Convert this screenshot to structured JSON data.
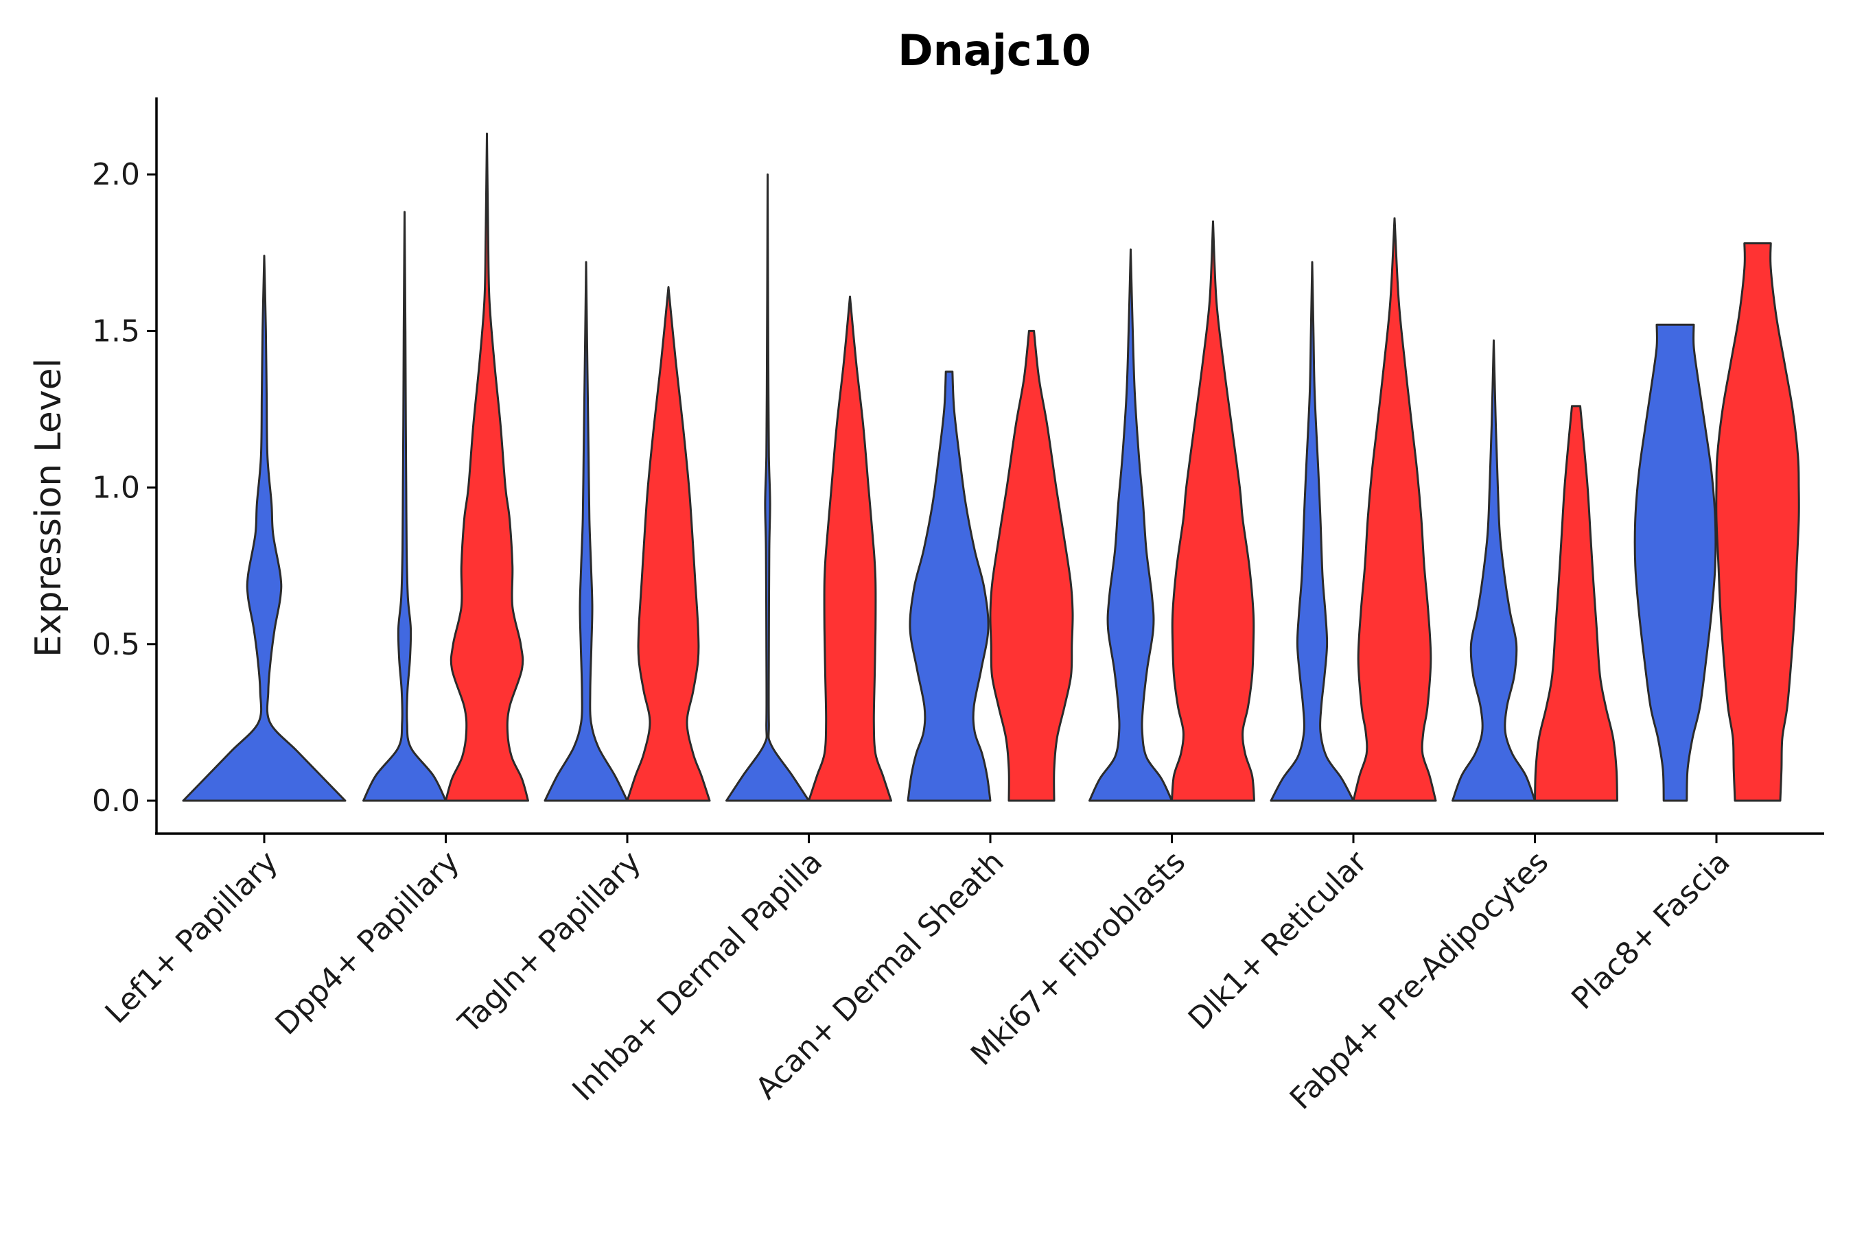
{
  "chart_data": {
    "type": "violin",
    "title": "Dnajc10",
    "xlabel": "",
    "ylabel": "Expression Level",
    "ylim": [
      -0.1,
      2.25
    ],
    "yticks": [
      "0.0",
      "0.5",
      "1.0",
      "1.5",
      "2.0"
    ],
    "grid": false,
    "legend": "none",
    "categories": [
      "Lef1+ Papillary",
      "Dpp4+ Papillary",
      "Tagln+ Papillary",
      "Inhba+ Dermal Papilla",
      "Acan+ Dermal Sheath",
      "Mki67+ Fibroblasts",
      "Dlk1+ Reticular",
      "Fabp4+ Pre-Adipocytes",
      "Plac8+ Fascia"
    ],
    "series": [
      {
        "name": "group 1",
        "color": "#4169E1",
        "violins": [
          {
            "max": 1.74,
            "profile": [
              [
                0,
                1
              ],
              [
                0.08,
                0.7
              ],
              [
                0.16,
                0.4
              ],
              [
                0.25,
                0.07
              ],
              [
                0.35,
                0.05
              ],
              [
                0.45,
                0.08
              ],
              [
                0.55,
                0.13
              ],
              [
                0.65,
                0.2
              ],
              [
                0.72,
                0.2
              ],
              [
                0.85,
                0.11
              ],
              [
                0.95,
                0.09
              ],
              [
                1.1,
                0.04
              ],
              [
                1.3,
                0.03
              ],
              [
                1.5,
                0.02
              ],
              [
                1.74,
                0
              ]
            ]
          },
          {
            "max": 1.88,
            "profile": [
              [
                0,
                1
              ],
              [
                0.08,
                0.7
              ],
              [
                0.17,
                0.15
              ],
              [
                0.25,
                0.06
              ],
              [
                0.35,
                0.07
              ],
              [
                0.45,
                0.13
              ],
              [
                0.55,
                0.15
              ],
              [
                0.65,
                0.08
              ],
              [
                0.8,
                0.05
              ],
              [
                1.0,
                0.04
              ],
              [
                1.2,
                0.03
              ],
              [
                1.5,
                0.02
              ],
              [
                1.88,
                0
              ]
            ]
          },
          {
            "max": 1.72,
            "profile": [
              [
                0,
                1
              ],
              [
                0.08,
                0.7
              ],
              [
                0.17,
                0.3
              ],
              [
                0.25,
                0.12
              ],
              [
                0.35,
                0.1
              ],
              [
                0.5,
                0.13
              ],
              [
                0.62,
                0.15
              ],
              [
                0.75,
                0.12
              ],
              [
                0.9,
                0.08
              ],
              [
                1.1,
                0.06
              ],
              [
                1.3,
                0.04
              ],
              [
                1.5,
                0.02
              ],
              [
                1.72,
                0
              ]
            ]
          },
          {
            "max": 2.0,
            "profile": [
              [
                0,
                1
              ],
              [
                0.08,
                0.6
              ],
              [
                0.18,
                0.08
              ],
              [
                0.25,
                0.03
              ],
              [
                0.5,
                0.03
              ],
              [
                0.8,
                0.04
              ],
              [
                0.95,
                0.06
              ],
              [
                1.1,
                0.03
              ],
              [
                1.3,
                0.02
              ],
              [
                1.6,
                0.01
              ],
              [
                2.0,
                0
              ]
            ]
          },
          {
            "max": 1.37,
            "profile": [
              [
                0,
                1
              ],
              [
                0.08,
                0.92
              ],
              [
                0.15,
                0.8
              ],
              [
                0.22,
                0.62
              ],
              [
                0.3,
                0.6
              ],
              [
                0.42,
                0.78
              ],
              [
                0.55,
                0.95
              ],
              [
                0.68,
                0.85
              ],
              [
                0.8,
                0.62
              ],
              [
                0.95,
                0.4
              ],
              [
                1.1,
                0.25
              ],
              [
                1.25,
                0.12
              ],
              [
                1.37,
                0.08
              ]
            ]
          },
          {
            "max": 1.76,
            "profile": [
              [
                0,
                1
              ],
              [
                0.07,
                0.75
              ],
              [
                0.14,
                0.38
              ],
              [
                0.22,
                0.28
              ],
              [
                0.3,
                0.3
              ],
              [
                0.42,
                0.4
              ],
              [
                0.55,
                0.55
              ],
              [
                0.65,
                0.52
              ],
              [
                0.8,
                0.38
              ],
              [
                0.95,
                0.3
              ],
              [
                1.1,
                0.2
              ],
              [
                1.3,
                0.1
              ],
              [
                1.5,
                0.05
              ],
              [
                1.76,
                0
              ]
            ]
          },
          {
            "max": 1.72,
            "profile": [
              [
                0,
                1
              ],
              [
                0.07,
                0.72
              ],
              [
                0.14,
                0.35
              ],
              [
                0.22,
                0.2
              ],
              [
                0.3,
                0.22
              ],
              [
                0.4,
                0.3
              ],
              [
                0.5,
                0.36
              ],
              [
                0.6,
                0.32
              ],
              [
                0.72,
                0.25
              ],
              [
                0.9,
                0.2
              ],
              [
                1.05,
                0.15
              ],
              [
                1.3,
                0.06
              ],
              [
                1.5,
                0.03
              ],
              [
                1.72,
                0
              ]
            ]
          },
          {
            "max": 1.47,
            "profile": [
              [
                0,
                1
              ],
              [
                0.08,
                0.78
              ],
              [
                0.15,
                0.45
              ],
              [
                0.22,
                0.28
              ],
              [
                0.3,
                0.32
              ],
              [
                0.4,
                0.5
              ],
              [
                0.5,
                0.55
              ],
              [
                0.6,
                0.4
              ],
              [
                0.7,
                0.28
              ],
              [
                0.85,
                0.15
              ],
              [
                1.0,
                0.1
              ],
              [
                1.2,
                0.05
              ],
              [
                1.47,
                0
              ]
            ]
          },
          {
            "max": 1.52,
            "profile": [
              [
                0,
                0.28
              ],
              [
                0.1,
                0.3
              ],
              [
                0.2,
                0.42
              ],
              [
                0.3,
                0.6
              ],
              [
                0.45,
                0.75
              ],
              [
                0.6,
                0.88
              ],
              [
                0.75,
                0.97
              ],
              [
                0.9,
                0.97
              ],
              [
                1.05,
                0.88
              ],
              [
                1.2,
                0.72
              ],
              [
                1.35,
                0.55
              ],
              [
                1.45,
                0.45
              ],
              [
                1.52,
                0.45
              ]
            ]
          }
        ]
      },
      {
        "name": "group 2",
        "color": "#FF3333",
        "violins": [
          null,
          {
            "max": 2.13,
            "profile": [
              [
                0,
                1
              ],
              [
                0.07,
                0.85
              ],
              [
                0.14,
                0.6
              ],
              [
                0.22,
                0.5
              ],
              [
                0.3,
                0.55
              ],
              [
                0.42,
                0.85
              ],
              [
                0.5,
                0.82
              ],
              [
                0.62,
                0.62
              ],
              [
                0.75,
                0.62
              ],
              [
                0.9,
                0.55
              ],
              [
                1.0,
                0.45
              ],
              [
                1.2,
                0.33
              ],
              [
                1.4,
                0.18
              ],
              [
                1.6,
                0.06
              ],
              [
                1.8,
                0.03
              ],
              [
                2.13,
                0
              ]
            ]
          },
          {
            "max": 1.64,
            "profile": [
              [
                0,
                1
              ],
              [
                0.08,
                0.8
              ],
              [
                0.15,
                0.6
              ],
              [
                0.25,
                0.45
              ],
              [
                0.35,
                0.6
              ],
              [
                0.45,
                0.72
              ],
              [
                0.55,
                0.72
              ],
              [
                0.7,
                0.65
              ],
              [
                0.85,
                0.58
              ],
              [
                1.0,
                0.5
              ],
              [
                1.2,
                0.35
              ],
              [
                1.4,
                0.18
              ],
              [
                1.64,
                0
              ]
            ]
          },
          {
            "max": 1.61,
            "profile": [
              [
                0,
                1
              ],
              [
                0.08,
                0.8
              ],
              [
                0.15,
                0.62
              ],
              [
                0.25,
                0.58
              ],
              [
                0.4,
                0.6
              ],
              [
                0.55,
                0.62
              ],
              [
                0.7,
                0.62
              ],
              [
                0.8,
                0.58
              ],
              [
                1.0,
                0.45
              ],
              [
                1.2,
                0.32
              ],
              [
                1.4,
                0.15
              ],
              [
                1.61,
                0
              ]
            ]
          },
          {
            "max": 1.5,
            "profile": [
              [
                0,
                0.55
              ],
              [
                0.1,
                0.55
              ],
              [
                0.2,
                0.62
              ],
              [
                0.3,
                0.8
              ],
              [
                0.4,
                0.96
              ],
              [
                0.5,
                0.98
              ],
              [
                0.6,
                1.0
              ],
              [
                0.7,
                0.95
              ],
              [
                0.85,
                0.78
              ],
              [
                1.0,
                0.6
              ],
              [
                1.2,
                0.38
              ],
              [
                1.35,
                0.18
              ],
              [
                1.5,
                0.06
              ]
            ]
          },
          {
            "max": 1.85,
            "profile": [
              [
                0,
                1
              ],
              [
                0.08,
                0.95
              ],
              [
                0.15,
                0.78
              ],
              [
                0.22,
                0.72
              ],
              [
                0.3,
                0.85
              ],
              [
                0.4,
                0.95
              ],
              [
                0.5,
                0.98
              ],
              [
                0.6,
                0.98
              ],
              [
                0.75,
                0.88
              ],
              [
                0.9,
                0.72
              ],
              [
                1.0,
                0.65
              ],
              [
                1.2,
                0.45
              ],
              [
                1.4,
                0.25
              ],
              [
                1.6,
                0.08
              ],
              [
                1.85,
                0
              ]
            ]
          },
          {
            "max": 1.86,
            "profile": [
              [
                0,
                1
              ],
              [
                0.08,
                0.85
              ],
              [
                0.15,
                0.68
              ],
              [
                0.22,
                0.7
              ],
              [
                0.3,
                0.8
              ],
              [
                0.45,
                0.88
              ],
              [
                0.6,
                0.82
              ],
              [
                0.75,
                0.72
              ],
              [
                0.9,
                0.65
              ],
              [
                1.05,
                0.55
              ],
              [
                1.2,
                0.42
              ],
              [
                1.4,
                0.25
              ],
              [
                1.6,
                0.1
              ],
              [
                1.86,
                0
              ]
            ]
          },
          {
            "max": 1.26,
            "profile": [
              [
                0,
                1
              ],
              [
                0.1,
                0.98
              ],
              [
                0.2,
                0.9
              ],
              [
                0.3,
                0.72
              ],
              [
                0.4,
                0.58
              ],
              [
                0.55,
                0.5
              ],
              [
                0.7,
                0.42
              ],
              [
                0.85,
                0.35
              ],
              [
                1.0,
                0.28
              ],
              [
                1.15,
                0.18
              ],
              [
                1.26,
                0.1
              ]
            ]
          },
          {
            "max": 1.78,
            "profile": [
              [
                0,
                0.55
              ],
              [
                0.1,
                0.58
              ],
              [
                0.2,
                0.6
              ],
              [
                0.3,
                0.72
              ],
              [
                0.45,
                0.82
              ],
              [
                0.6,
                0.9
              ],
              [
                0.75,
                0.95
              ],
              [
                0.9,
                1.0
              ],
              [
                1.0,
                1.0
              ],
              [
                1.1,
                0.98
              ],
              [
                1.25,
                0.85
              ],
              [
                1.4,
                0.65
              ],
              [
                1.55,
                0.45
              ],
              [
                1.7,
                0.32
              ],
              [
                1.78,
                0.32
              ]
            ]
          }
        ]
      }
    ]
  }
}
